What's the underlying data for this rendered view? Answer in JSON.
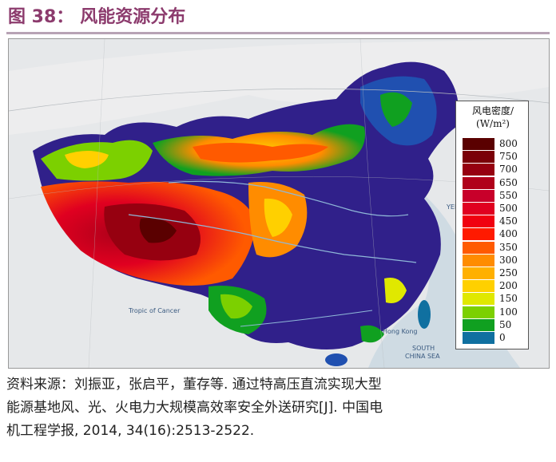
{
  "figure": {
    "number": "图 38：",
    "title": "风能资源分布"
  },
  "map": {
    "legend": {
      "title_line1": "风电密度/",
      "title_line2": "(W/m²)",
      "items": [
        {
          "label": "800",
          "color": "#5a0000"
        },
        {
          "label": "750",
          "color": "#7a0008"
        },
        {
          "label": "700",
          "color": "#960010"
        },
        {
          "label": "650",
          "color": "#b0001a"
        },
        {
          "label": "550",
          "color": "#c8002a"
        },
        {
          "label": "500",
          "color": "#e00020"
        },
        {
          "label": "450",
          "color": "#f00010"
        },
        {
          "label": "400",
          "color": "#ff1a00"
        },
        {
          "label": "350",
          "color": "#ff5a00"
        },
        {
          "label": "300",
          "color": "#ff8c00"
        },
        {
          "label": "250",
          "color": "#ffb000"
        },
        {
          "label": "200",
          "color": "#ffd000"
        },
        {
          "label": "150",
          "color": "#e0e800"
        },
        {
          "label": "100",
          "color": "#7cd000"
        },
        {
          "label": "50",
          "color": "#10a020"
        },
        {
          "label": "0",
          "color": "#1070a0"
        }
      ]
    },
    "sea_labels": {
      "south_china_sea_1": "SOUTH",
      "south_china_sea_2": "CHINA SEA",
      "yellow_sea": "YELL",
      "tropic": "Tropic of Cancer",
      "hong_kong": "Hong Kong"
    }
  },
  "source": {
    "line1": "资料来源：刘振亚，张启平，董存等. 通过特高压直流实现大型",
    "line2": "能源基地风、光、火电力大规模高效率安全外送研究[J]. 中国电",
    "line3": "机工程学报, 2014, 34(16):2513-2522."
  }
}
